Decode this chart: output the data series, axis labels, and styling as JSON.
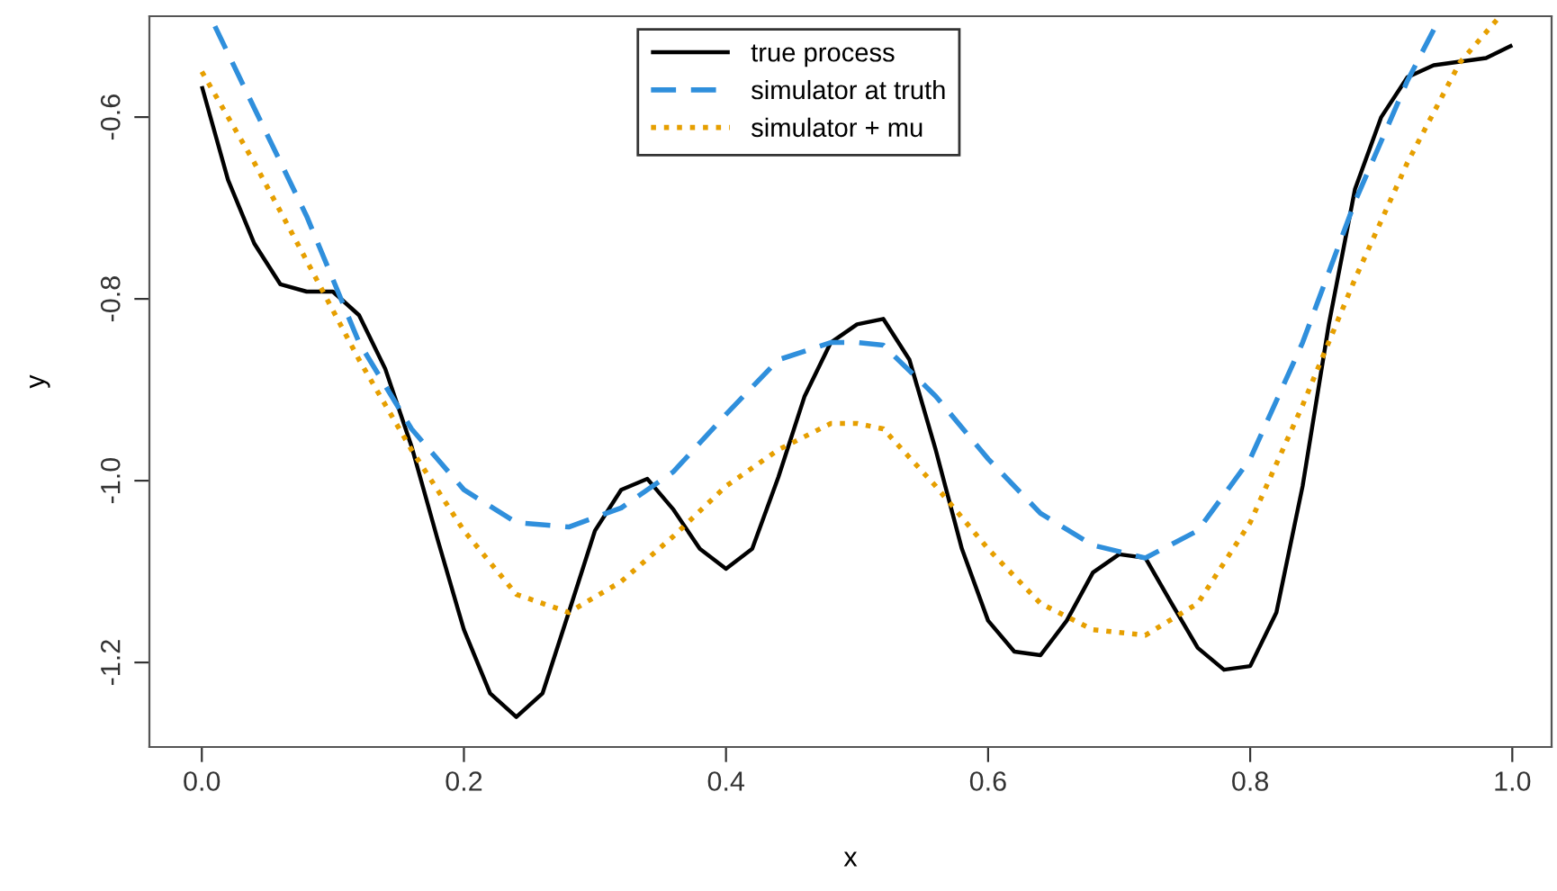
{
  "chart_data": {
    "type": "line",
    "xlabel": "x",
    "ylabel": "y",
    "xlim": [
      -0.04,
      1.03
    ],
    "ylim": [
      -1.293,
      -0.489
    ],
    "xticks": [
      {
        "value": 0,
        "label": "0.0"
      },
      0.2,
      0.4,
      0.6,
      0.8,
      {
        "value": 1,
        "label": "1.0"
      }
    ],
    "yticks": [
      -0.6,
      -0.8,
      {
        "value": -1,
        "label": "-1.0"
      },
      -1.2
    ],
    "grid": false,
    "legend": "top",
    "marker": "none",
    "series": [
      {
        "name": "true process",
        "color": "#000000",
        "line_style": "solid",
        "x": [
          0,
          0.02,
          0.04,
          0.06,
          0.08,
          0.1,
          0.12,
          0.14,
          0.16,
          0.18,
          0.2,
          0.22,
          0.24,
          0.26,
          0.28,
          0.3,
          0.32,
          0.34,
          0.36,
          0.38,
          0.4,
          0.42,
          0.44,
          0.46,
          0.48,
          0.5,
          0.52,
          0.54,
          0.56,
          0.58,
          0.6,
          0.62,
          0.64,
          0.66,
          0.68,
          0.7,
          0.72,
          0.74,
          0.76,
          0.78,
          0.8,
          0.82,
          0.84,
          0.86,
          0.88,
          0.9,
          0.92,
          0.94,
          0.96,
          0.98,
          1
        ],
        "values": [
          -0.566,
          -0.669,
          -0.739,
          -0.784,
          -0.792,
          -0.792,
          -0.818,
          -0.877,
          -0.962,
          -1.065,
          -1.164,
          -1.234,
          -1.26,
          -1.234,
          -1.145,
          -1.055,
          -1.01,
          -0.998,
          -1.032,
          -1.075,
          -1.097,
          -1.075,
          -0.996,
          -0.907,
          -0.848,
          -0.828,
          -0.822,
          -0.867,
          -0.966,
          -1.075,
          -1.154,
          -1.188,
          -1.192,
          -1.154,
          -1.101,
          -1.081,
          -1.085,
          -1.135,
          -1.184,
          -1.208,
          -1.204,
          -1.145,
          -1.006,
          -0.828,
          -0.679,
          -0.6,
          -0.556,
          -0.543,
          -0.539,
          -0.535,
          -0.521
        ]
      },
      {
        "name": "simulator at truth",
        "color": "#2f8fdc",
        "line_style": "dashed",
        "x": [
          0.01,
          0.04,
          0.08,
          0.12,
          0.16,
          0.2,
          0.24,
          0.28,
          0.32,
          0.36,
          0.4,
          0.44,
          0.48,
          0.5,
          0.52,
          0.56,
          0.6,
          0.64,
          0.68,
          0.72,
          0.76,
          0.8,
          0.84,
          0.88,
          0.92,
          0.945
        ],
        "values": [
          -0.5,
          -0.59,
          -0.709,
          -0.848,
          -0.943,
          -1.01,
          -1.046,
          -1.051,
          -1.03,
          -0.99,
          -0.927,
          -0.867,
          -0.848,
          -0.848,
          -0.851,
          -0.907,
          -0.976,
          -1.036,
          -1.071,
          -1.085,
          -1.055,
          -0.976,
          -0.848,
          -0.693,
          -0.56,
          -0.49
        ]
      },
      {
        "name": "simulator + mu",
        "color": "#e69f00",
        "line_style": "dotted",
        "x": [
          0,
          0.04,
          0.08,
          0.12,
          0.16,
          0.2,
          0.24,
          0.28,
          0.32,
          0.36,
          0.4,
          0.44,
          0.48,
          0.5,
          0.52,
          0.56,
          0.6,
          0.64,
          0.68,
          0.72,
          0.76,
          0.8,
          0.84,
          0.88,
          0.92,
          0.96,
          0.99
        ],
        "values": [
          -0.55,
          -0.65,
          -0.758,
          -0.867,
          -0.966,
          -1.055,
          -1.125,
          -1.145,
          -1.111,
          -1.061,
          -1.006,
          -0.966,
          -0.937,
          -0.937,
          -0.943,
          -1.006,
          -1.075,
          -1.135,
          -1.164,
          -1.17,
          -1.135,
          -1.046,
          -0.917,
          -0.778,
          -0.65,
          -0.54,
          -0.49
        ]
      }
    ]
  }
}
